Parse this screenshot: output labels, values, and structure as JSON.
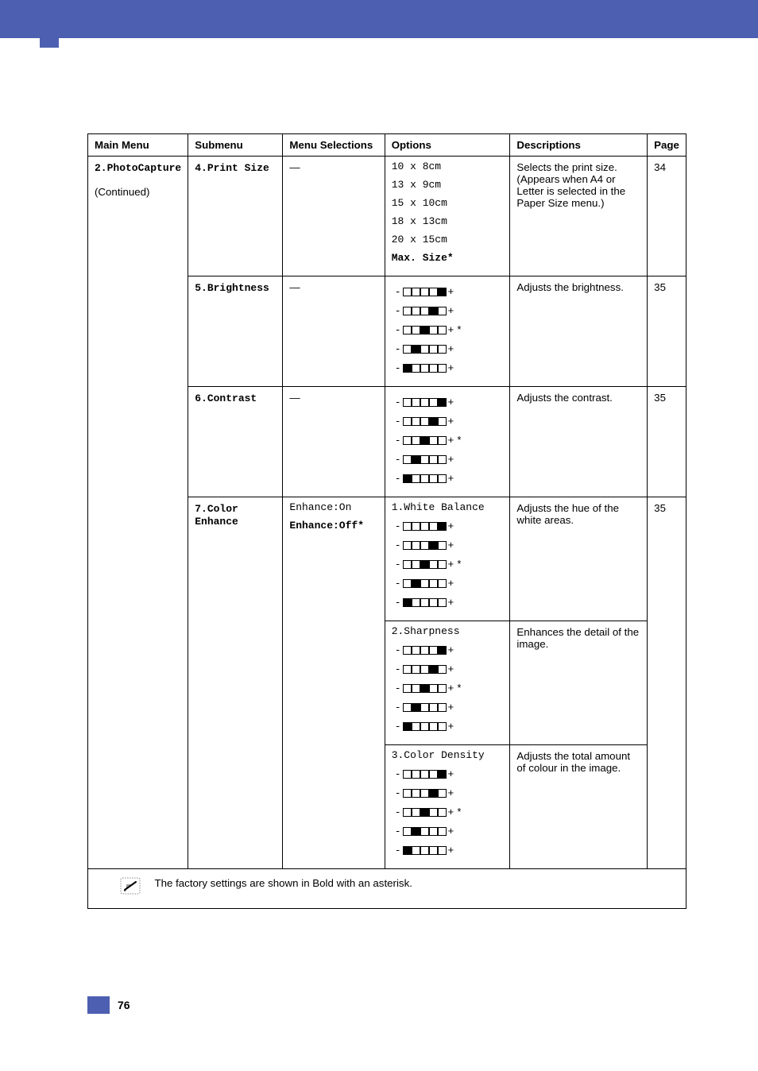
{
  "headers": {
    "main_menu": "Main Menu",
    "submenu": "Submenu",
    "menu_selections": "Menu Selections",
    "options": "Options",
    "descriptions": "Descriptions",
    "page": "Page"
  },
  "rows": {
    "print_size": {
      "main": "2.PhotoCapture",
      "main_cont": "(Continued)",
      "submenu": "4.Print Size",
      "selection_dash": "—",
      "options": [
        "10 x 8cm",
        "13 x 9cm",
        "15 x 10cm",
        "18 x 13cm",
        "20 x 15cm"
      ],
      "option_bold": "Max. Size*",
      "desc": "Selects the print size. (Appears when A4 or Letter is selected in the Paper Size menu.)",
      "page": "34"
    },
    "brightness": {
      "submenu": "5.Brightness",
      "selection_dash": "—",
      "desc": "Adjusts the brightness.",
      "page": "35"
    },
    "contrast": {
      "submenu": "6.Contrast",
      "selection_dash": "—",
      "desc": "Adjusts the contrast.",
      "page": "35"
    },
    "color_enhance": {
      "submenu": "7.Color Enhance",
      "sel_on": "Enhance:On",
      "sel_off": "Enhance:Off*",
      "opt1_label": "1.White Balance",
      "opt2_label": "2.Sharpness",
      "opt3_label": "3.Color Density",
      "desc1": "Adjusts the hue of the white areas.",
      "desc2": "Enhances the detail of the image.",
      "desc3": "Adjusts the total amount of colour in the image.",
      "page": "35"
    }
  },
  "slider": {
    "patterns": [
      [
        0,
        0,
        0,
        0,
        1
      ],
      [
        0,
        0,
        0,
        1,
        0
      ],
      [
        0,
        0,
        1,
        0,
        0
      ],
      [
        0,
        1,
        0,
        0,
        0
      ],
      [
        1,
        0,
        0,
        0,
        0
      ]
    ],
    "default_index": 2
  },
  "footnote": "The factory settings are shown in Bold with an asterisk.",
  "page_number": "76",
  "colors": {
    "brand": "#4d5fb0",
    "text": "#000000",
    "background": "#ffffff",
    "border": "#000000"
  },
  "fonts": {
    "body_size_pt": 10,
    "mono_family": "Courier New"
  }
}
